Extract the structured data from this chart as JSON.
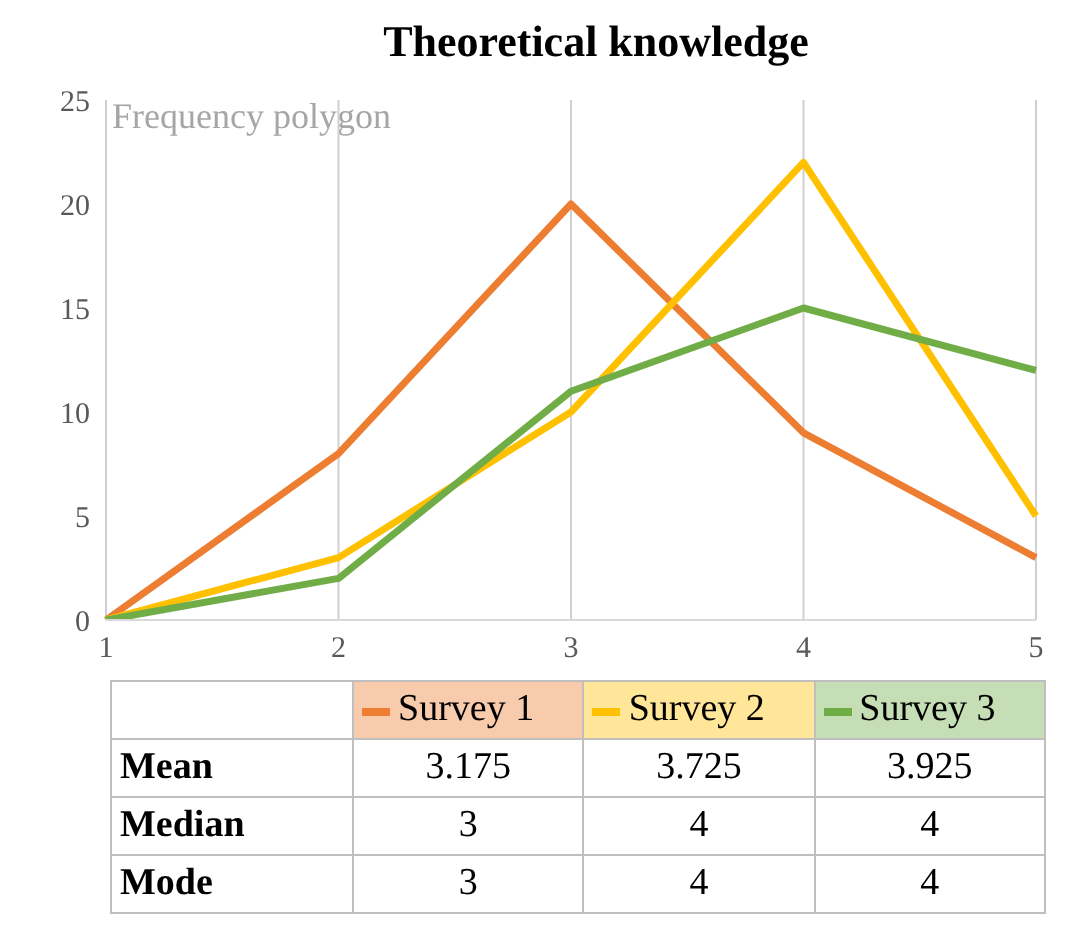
{
  "chart_data": {
    "type": "line",
    "title": "Theoretical knowledge",
    "subtitle": "Frequency polygon",
    "categories": [
      "1",
      "2",
      "3",
      "4",
      "5"
    ],
    "series": [
      {
        "name": "Survey 1",
        "color": "#ed7d31",
        "values": [
          0,
          8,
          20,
          9,
          3
        ]
      },
      {
        "name": "Survey 2",
        "color": "#ffc000",
        "values": [
          0,
          3,
          10,
          22,
          5
        ]
      },
      {
        "name": "Survey 3",
        "color": "#70ad47",
        "values": [
          0,
          2,
          11,
          15,
          12
        ]
      }
    ],
    "ylim": [
      0,
      25
    ],
    "yticks": [
      0,
      5,
      10,
      15,
      20,
      25
    ],
    "grid": "x",
    "legend": "bottom",
    "marker": "none",
    "line_style": "solid",
    "annotations": [
      "Mean",
      "3.175",
      "3.725",
      "3.925",
      "Median",
      "3",
      "4",
      "4",
      "Mode",
      "3",
      "4",
      "4"
    ]
  }
}
